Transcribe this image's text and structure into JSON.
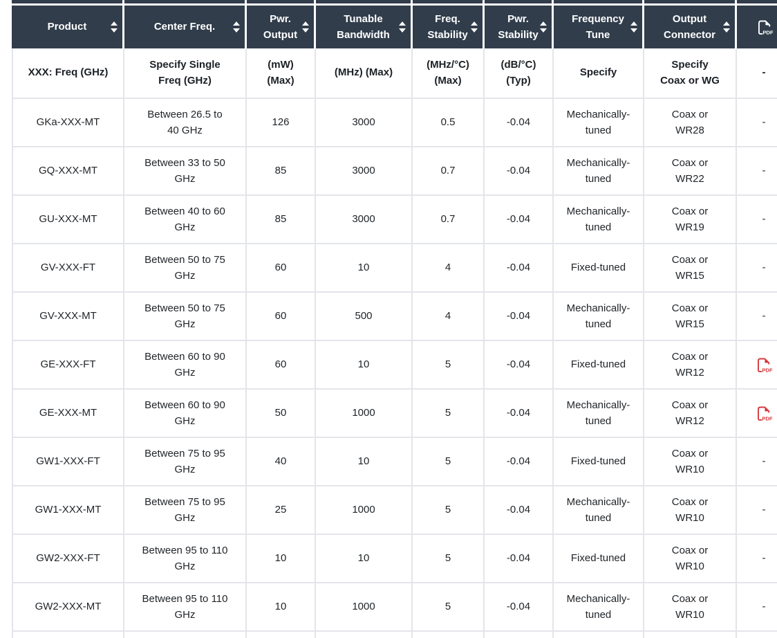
{
  "colors": {
    "header_bg": "#313d4b",
    "header_text": "#ffffff",
    "pdf_red": "#d4393d",
    "border": "#e3e5e9",
    "body_text": "#212529"
  },
  "table": {
    "columns": [
      {
        "key": "product",
        "label": "Product",
        "sub": "XXX: Freq (GHz)",
        "sortable": true,
        "icon": null
      },
      {
        "key": "center_freq",
        "label": "Center Freq.",
        "sub": "Specify Single\nFreq (GHz)",
        "sortable": true,
        "icon": null
      },
      {
        "key": "pwr_output",
        "label": "Pwr.\nOutput",
        "sub": "(mW)\n(Max)",
        "sortable": true,
        "icon": null
      },
      {
        "key": "tunable_bandwidth",
        "label": "Tunable\nBandwidth",
        "sub": "(MHz) (Max)",
        "sortable": true,
        "icon": null
      },
      {
        "key": "freq_stability",
        "label": "Freq.\nStability",
        "sub": "(MHz/°C)\n(Max)",
        "sortable": true,
        "icon": null
      },
      {
        "key": "pwr_stability",
        "label": "Pwr.\nStability",
        "sub": "(dB/°C)\n(Typ)",
        "sortable": true,
        "icon": null
      },
      {
        "key": "frequency_tune",
        "label": "Frequency\nTune",
        "sub": "Specify",
        "sortable": true,
        "icon": null
      },
      {
        "key": "output_connector",
        "label": "Output\nConnector",
        "sub": "Specify\nCoax or WG",
        "sortable": true,
        "icon": null
      },
      {
        "key": "pdf",
        "label": "",
        "sub": "-",
        "sortable": false,
        "icon": "pdf-icon"
      }
    ],
    "rows": [
      {
        "product": "GKa-XXX-MT",
        "center_freq": "Between 26.5 to\n40 GHz",
        "pwr_output": "126",
        "tunable_bandwidth": "3000",
        "freq_stability": "0.5",
        "pwr_stability": "-0.04",
        "frequency_tune": "Mechanically-\ntuned",
        "output_connector": "Coax or\nWR28",
        "pdf": "-"
      },
      {
        "product": "GQ-XXX-MT",
        "center_freq": "Between 33 to 50\nGHz",
        "pwr_output": "85",
        "tunable_bandwidth": "3000",
        "freq_stability": "0.7",
        "pwr_stability": "-0.04",
        "frequency_tune": "Mechanically-\ntuned",
        "output_connector": "Coax or\nWR22",
        "pdf": "-"
      },
      {
        "product": "GU-XXX-MT",
        "center_freq": "Between 40 to 60\nGHz",
        "pwr_output": "85",
        "tunable_bandwidth": "3000",
        "freq_stability": "0.7",
        "pwr_stability": "-0.04",
        "frequency_tune": "Mechanically-\ntuned",
        "output_connector": "Coax or\nWR19",
        "pdf": "-"
      },
      {
        "product": "GV-XXX-FT",
        "center_freq": "Between 50 to 75\nGHz",
        "pwr_output": "60",
        "tunable_bandwidth": "10",
        "freq_stability": "4",
        "pwr_stability": "-0.04",
        "frequency_tune": "Fixed-tuned",
        "output_connector": "Coax or\nWR15",
        "pdf": "-"
      },
      {
        "product": "GV-XXX-MT",
        "center_freq": "Between 50 to 75\nGHz",
        "pwr_output": "60",
        "tunable_bandwidth": "500",
        "freq_stability": "4",
        "pwr_stability": "-0.04",
        "frequency_tune": "Mechanically-\ntuned",
        "output_connector": "Coax or\nWR15",
        "pdf": "-"
      },
      {
        "product": "GE-XXX-FT",
        "center_freq": "Between 60 to 90\nGHz",
        "pwr_output": "60",
        "tunable_bandwidth": "10",
        "freq_stability": "5",
        "pwr_stability": "-0.04",
        "frequency_tune": "Fixed-tuned",
        "output_connector": "Coax or\nWR12",
        "pdf": "pdf-icon"
      },
      {
        "product": "GE-XXX-MT",
        "center_freq": "Between 60 to 90\nGHz",
        "pwr_output": "50",
        "tunable_bandwidth": "1000",
        "freq_stability": "5",
        "pwr_stability": "-0.04",
        "frequency_tune": "Mechanically-\ntuned",
        "output_connector": "Coax or\nWR12",
        "pdf": "pdf-icon"
      },
      {
        "product": "GW1-XXX-FT",
        "center_freq": "Between 75 to 95\nGHz",
        "pwr_output": "40",
        "tunable_bandwidth": "10",
        "freq_stability": "5",
        "pwr_stability": "-0.04",
        "frequency_tune": "Fixed-tuned",
        "output_connector": "Coax or\nWR10",
        "pdf": "-"
      },
      {
        "product": "GW1-XXX-MT",
        "center_freq": "Between 75 to 95\nGHz",
        "pwr_output": "25",
        "tunable_bandwidth": "1000",
        "freq_stability": "5",
        "pwr_stability": "-0.04",
        "frequency_tune": "Mechanically-\ntuned",
        "output_connector": "Coax or\nWR10",
        "pdf": "-"
      },
      {
        "product": "GW2-XXX-FT",
        "center_freq": "Between 95 to 110\nGHz",
        "pwr_output": "10",
        "tunable_bandwidth": "10",
        "freq_stability": "5",
        "pwr_stability": "-0.04",
        "frequency_tune": "Fixed-tuned",
        "output_connector": "Coax or\nWR10",
        "pdf": "-"
      },
      {
        "product": "GW2-XXX-MT",
        "center_freq": "Between 95 to 110\nGHz",
        "pwr_output": "10",
        "tunable_bandwidth": "1000",
        "freq_stability": "5",
        "pwr_stability": "-0.04",
        "frequency_tune": "Mechanically-\ntuned",
        "output_connector": "Coax or\nWR10",
        "pdf": "-"
      }
    ]
  }
}
